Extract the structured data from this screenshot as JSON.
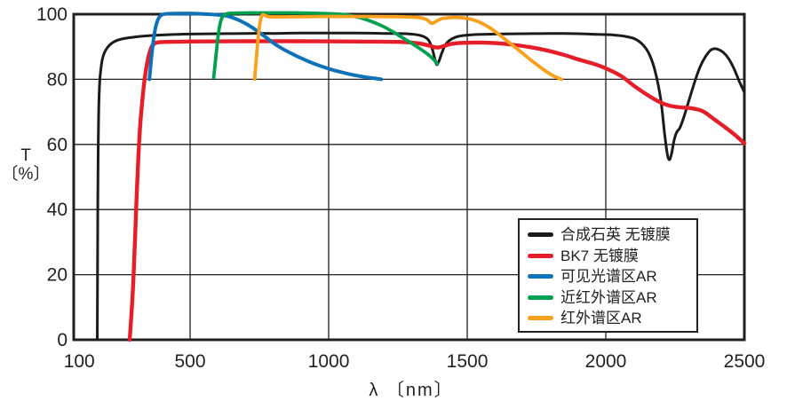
{
  "chart_data": {
    "type": "line",
    "title": "",
    "xlabel": "λ 〔nm〕",
    "ylabel": [
      "T",
      "〔%〕"
    ],
    "xaxis": {
      "domain": [
        80,
        2500
      ],
      "ticks": [
        100,
        500,
        1000,
        1500,
        2000,
        2500
      ],
      "gridlines": [
        500,
        1000,
        1500,
        2000
      ]
    },
    "yaxis": {
      "domain": [
        0,
        100
      ],
      "ticks": [
        0,
        20,
        40,
        60,
        80,
        100
      ],
      "gridlines": [
        20,
        40,
        60,
        80
      ]
    },
    "grid": true,
    "legend_position": "inside-lower-right",
    "axis_color": "#231f20",
    "series": [
      {
        "name": "合成石英 无镀膜",
        "color": "#1b1b1b",
        "width": 3,
        "points": [
          [
            165,
            0
          ],
          [
            166,
            20
          ],
          [
            167,
            42
          ],
          [
            168,
            58
          ],
          [
            170,
            70
          ],
          [
            173,
            78
          ],
          [
            177,
            82.5
          ],
          [
            183,
            86
          ],
          [
            191,
            88.2
          ],
          [
            202,
            89.8
          ],
          [
            216,
            91
          ],
          [
            235,
            91.9
          ],
          [
            260,
            92.5
          ],
          [
            300,
            93
          ],
          [
            350,
            93.4
          ],
          [
            420,
            93.7
          ],
          [
            500,
            93.9
          ],
          [
            600,
            94
          ],
          [
            700,
            94.1
          ],
          [
            800,
            94.1
          ],
          [
            900,
            94.2
          ],
          [
            1000,
            94.2
          ],
          [
            1100,
            94.2
          ],
          [
            1200,
            94.1
          ],
          [
            1280,
            94
          ],
          [
            1330,
            93.5
          ],
          [
            1358,
            92.3
          ],
          [
            1372,
            89.8
          ],
          [
            1383,
            86.3
          ],
          [
            1390,
            84.5
          ],
          [
            1398,
            85.6
          ],
          [
            1408,
            88
          ],
          [
            1422,
            90.7
          ],
          [
            1442,
            92.3
          ],
          [
            1468,
            93.2
          ],
          [
            1520,
            93.7
          ],
          [
            1600,
            93.9
          ],
          [
            1700,
            94
          ],
          [
            1800,
            94.1
          ],
          [
            1900,
            94
          ],
          [
            1970,
            93.8
          ],
          [
            2030,
            93.6
          ],
          [
            2070,
            93.2
          ],
          [
            2105,
            92.4
          ],
          [
            2135,
            90.5
          ],
          [
            2158,
            87.5
          ],
          [
            2178,
            82.5
          ],
          [
            2198,
            74
          ],
          [
            2212,
            63.5
          ],
          [
            2222,
            57
          ],
          [
            2230,
            55.3
          ],
          [
            2238,
            57.5
          ],
          [
            2247,
            61.5
          ],
          [
            2256,
            63.8
          ],
          [
            2268,
            65.2
          ],
          [
            2282,
            68.5
          ],
          [
            2300,
            73.5
          ],
          [
            2320,
            79
          ],
          [
            2340,
            83.8
          ],
          [
            2360,
            87
          ],
          [
            2378,
            88.9
          ],
          [
            2392,
            89.4
          ],
          [
            2408,
            89.1
          ],
          [
            2425,
            88.2
          ],
          [
            2443,
            86.4
          ],
          [
            2462,
            83.4
          ],
          [
            2482,
            79.3
          ],
          [
            2500,
            76
          ]
        ]
      },
      {
        "name": "BK7 无镀膜",
        "color": "#e51e29",
        "width": 4.4,
        "points": [
          [
            282,
            0
          ],
          [
            290,
            10
          ],
          [
            295,
            18
          ],
          [
            299,
            26
          ],
          [
            303,
            35
          ],
          [
            307,
            44
          ],
          [
            311,
            52
          ],
          [
            315,
            59
          ],
          [
            320,
            66
          ],
          [
            326,
            72
          ],
          [
            333,
            78
          ],
          [
            341,
            83
          ],
          [
            350,
            87
          ],
          [
            360,
            89.8
          ],
          [
            372,
            91
          ],
          [
            390,
            91.4
          ],
          [
            420,
            91.5
          ],
          [
            500,
            91.6
          ],
          [
            700,
            91.7
          ],
          [
            900,
            91.7
          ],
          [
            1100,
            91.6
          ],
          [
            1250,
            91.5
          ],
          [
            1320,
            91.1
          ],
          [
            1360,
            90.4
          ],
          [
            1385,
            89.8
          ],
          [
            1398,
            89.8
          ],
          [
            1415,
            90.2
          ],
          [
            1445,
            90.9
          ],
          [
            1485,
            91.2
          ],
          [
            1545,
            91.3
          ],
          [
            1605,
            91.1
          ],
          [
            1665,
            90.6
          ],
          [
            1725,
            89.9
          ],
          [
            1785,
            88.9
          ],
          [
            1845,
            87.6
          ],
          [
            1905,
            86
          ],
          [
            1955,
            84.8
          ],
          [
            2005,
            83.2
          ],
          [
            2055,
            81
          ],
          [
            2105,
            77.8
          ],
          [
            2150,
            75.2
          ],
          [
            2195,
            73
          ],
          [
            2230,
            71.9
          ],
          [
            2270,
            71.4
          ],
          [
            2310,
            71.1
          ],
          [
            2350,
            70.2
          ],
          [
            2390,
            67.8
          ],
          [
            2430,
            65.3
          ],
          [
            2465,
            63
          ],
          [
            2500,
            60.3
          ]
        ]
      },
      {
        "name": "可见光谱区AR",
        "color": "#0e72b8",
        "width": 4,
        "points": [
          [
            353,
            80
          ],
          [
            358,
            84.5
          ],
          [
            364,
            89.5
          ],
          [
            371,
            94
          ],
          [
            379,
            97.2
          ],
          [
            388,
            99
          ],
          [
            398,
            99.8
          ],
          [
            412,
            100.1
          ],
          [
            450,
            100.2
          ],
          [
            510,
            100.2
          ],
          [
            560,
            100
          ],
          [
            600,
            99.8
          ],
          [
            635,
            99.4
          ],
          [
            670,
            98.4
          ],
          [
            705,
            96.9
          ],
          [
            740,
            95
          ],
          [
            775,
            92.8
          ],
          [
            810,
            90.6
          ],
          [
            850,
            88.6
          ],
          [
            890,
            86.9
          ],
          [
            930,
            85.4
          ],
          [
            970,
            84.1
          ],
          [
            1010,
            83
          ],
          [
            1060,
            81.9
          ],
          [
            1110,
            81
          ],
          [
            1155,
            80.4
          ],
          [
            1190,
            80
          ]
        ]
      },
      {
        "name": "近红外谱区AR",
        "color": "#00a14e",
        "width": 3.8,
        "points": [
          [
            585,
            80.5
          ],
          [
            590,
            84.5
          ],
          [
            596,
            89.5
          ],
          [
            602,
            94
          ],
          [
            609,
            97.3
          ],
          [
            617,
            99.2
          ],
          [
            628,
            100
          ],
          [
            650,
            100.3
          ],
          [
            720,
            100.4
          ],
          [
            800,
            100.4
          ],
          [
            880,
            100.4
          ],
          [
            950,
            100.3
          ],
          [
            1020,
            100.1
          ],
          [
            1070,
            99.7
          ],
          [
            1110,
            99
          ],
          [
            1150,
            97.9
          ],
          [
            1190,
            96.5
          ],
          [
            1230,
            94.7
          ],
          [
            1270,
            92.6
          ],
          [
            1310,
            90.5
          ],
          [
            1350,
            88.2
          ],
          [
            1375,
            86.4
          ],
          [
            1392,
            84.8
          ]
        ]
      },
      {
        "name": "红外谱区AR",
        "color": "#f9a01f",
        "width": 3.8,
        "points": [
          [
            733,
            80
          ],
          [
            737,
            84.5
          ],
          [
            742,
            89.5
          ],
          [
            747,
            94
          ],
          [
            752,
            97.3
          ],
          [
            757,
            99.2
          ],
          [
            763,
            99.9
          ],
          [
            771,
            99.6
          ],
          [
            790,
            99.2
          ],
          [
            860,
            99.2
          ],
          [
            960,
            99.3
          ],
          [
            1060,
            99.3
          ],
          [
            1160,
            99.3
          ],
          [
            1260,
            99.2
          ],
          [
            1325,
            99
          ],
          [
            1352,
            98.4
          ],
          [
            1372,
            97.2
          ],
          [
            1392,
            98
          ],
          [
            1412,
            98.7
          ],
          [
            1455,
            99
          ],
          [
            1500,
            98.7
          ],
          [
            1540,
            97.7
          ],
          [
            1580,
            95.9
          ],
          [
            1620,
            93.4
          ],
          [
            1660,
            90.7
          ],
          [
            1700,
            88
          ],
          [
            1740,
            85.2
          ],
          [
            1780,
            82.7
          ],
          [
            1812,
            81
          ],
          [
            1840,
            80
          ]
        ]
      }
    ]
  }
}
